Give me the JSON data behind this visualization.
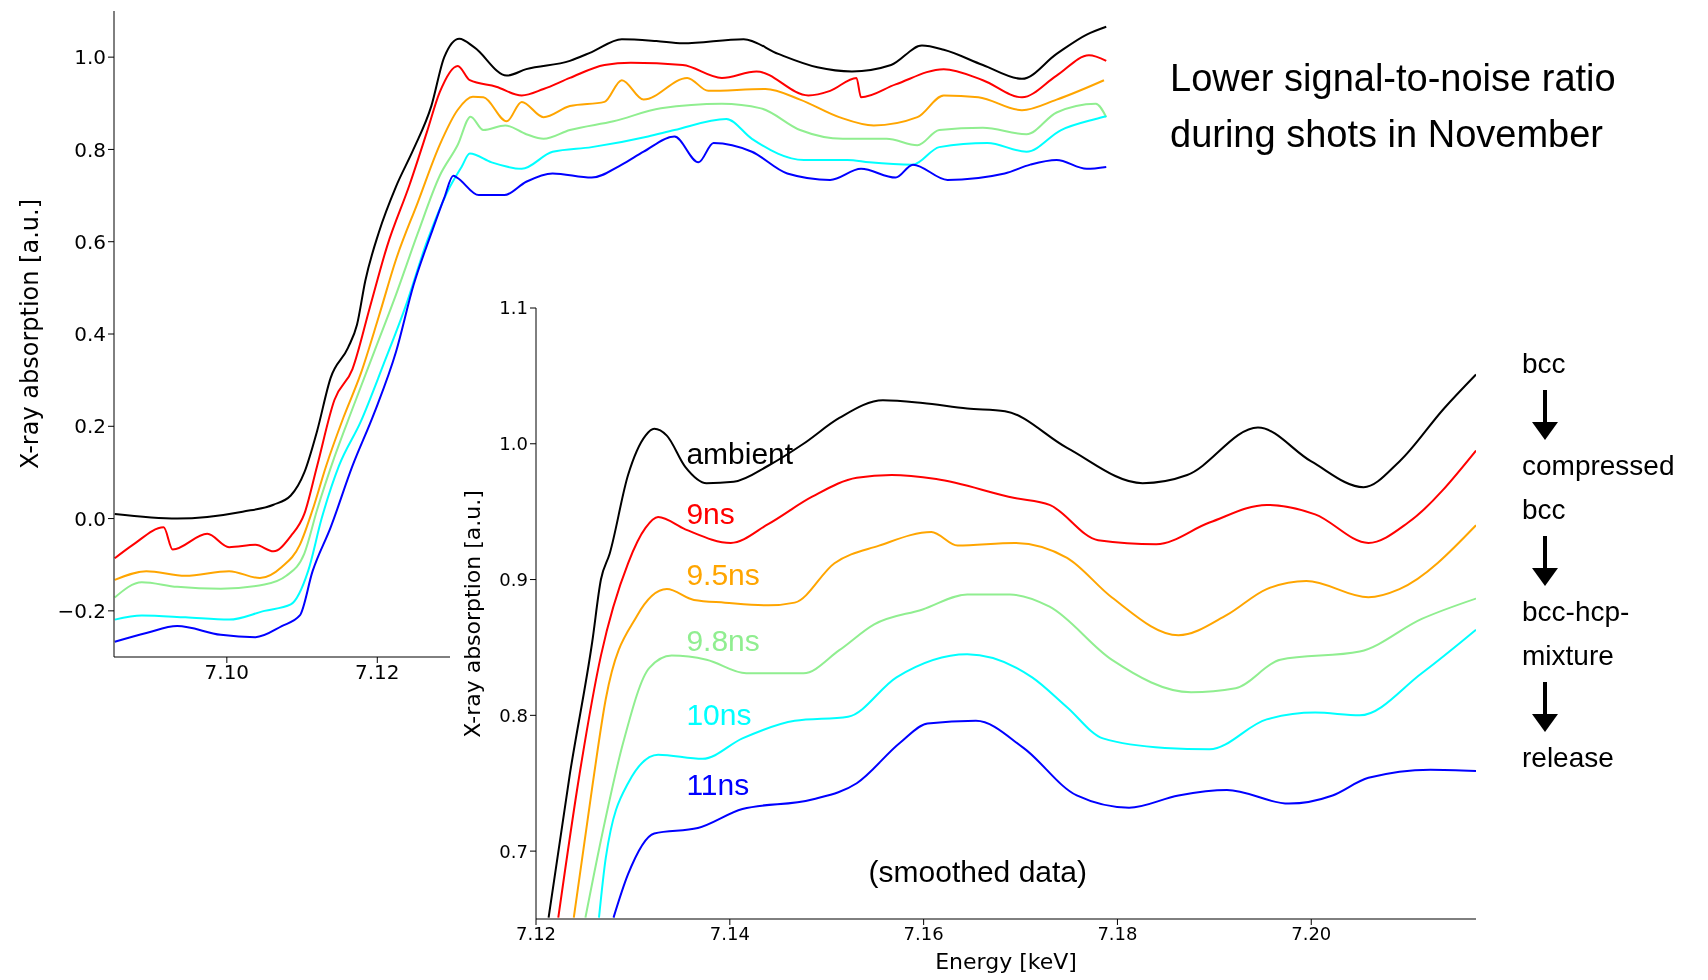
{
  "chart_data": [
    {
      "type": "line",
      "ylabel": "X-ray absorption [a.u.]",
      "xlim": [
        7.085,
        7.217
      ],
      "ylim": [
        -0.3,
        1.1
      ],
      "xticks": [
        {
          "value": 7.1,
          "label": "7.10"
        },
        {
          "value": 7.12,
          "label": "7.12"
        }
      ],
      "yticks": [
        {
          "value": -0.2,
          "label": "−0.2"
        },
        {
          "value": 0,
          "label": "0.0"
        },
        {
          "value": 0.2,
          "label": "0.2"
        },
        {
          "value": 0.4,
          "label": "0.4"
        },
        {
          "value": 0.6,
          "label": "0.6"
        },
        {
          "value": 0.8,
          "label": "0.8"
        },
        {
          "value": 1,
          "label": "1.0"
        }
      ],
      "annotations": [
        "Lower signal-to-noise ratio during shots in November"
      ],
      "series": [
        {
          "color": "#000000",
          "x": [
            7.0851,
            7.0934,
            7.1021,
            7.1062,
            7.1085,
            7.1103,
            7.112,
            7.1138,
            7.1161,
            7.1173,
            7.1184,
            7.1202,
            7.1225,
            7.1248,
            7.1272,
            7.1289,
            7.1309,
            7.1329,
            7.1372,
            7.1398,
            7.1456,
            7.1485,
            7.1525,
            7.1571,
            7.1606,
            7.1687,
            7.1733,
            7.1785,
            7.1831,
            7.1883,
            7.1924,
            7.1953,
            7.2005,
            7.2057,
            7.2103,
            7.2143,
            7.2169
          ],
          "values": [
            0.01,
            0.0,
            0.015,
            0.03,
            0.05,
            0.1,
            0.19,
            0.305,
            0.37,
            0.42,
            0.515,
            0.62,
            0.72,
            0.8,
            0.895,
            1.0,
            1.04,
            1.021,
            0.96,
            0.974,
            0.992,
            1.011,
            1.039,
            1.035,
            1.03,
            1.039,
            1.007,
            0.978,
            0.969,
            0.983,
            1.025,
            1.016,
            0.983,
            0.953,
            1.007,
            1.049,
            1.066
          ]
        },
        {
          "color": "#ff0000",
          "x": [
            7.0851,
            7.0875,
            7.0916,
            7.0928,
            7.0974,
            7.1003,
            7.1038,
            7.1062,
            7.1085,
            7.1103,
            7.112,
            7.1143,
            7.1167,
            7.119,
            7.1213,
            7.1243,
            7.1266,
            7.1283,
            7.1307,
            7.1323,
            7.1358,
            7.1392,
            7.1421,
            7.1456,
            7.1502,
            7.1537,
            7.1606,
            7.1658,
            7.1704,
            7.1773,
            7.1802,
            7.1837,
            7.1843,
            7.1889,
            7.1953,
            7.2005,
            7.2057,
            7.2103,
            7.2146,
            7.2169
          ],
          "values": [
            -0.086,
            -0.057,
            -0.019,
            -0.067,
            -0.033,
            -0.062,
            -0.057,
            -0.071,
            -0.038,
            0.01,
            0.114,
            0.257,
            0.324,
            0.457,
            0.59,
            0.724,
            0.838,
            0.924,
            0.981,
            0.95,
            0.936,
            0.917,
            0.931,
            0.955,
            0.983,
            0.988,
            0.983,
            0.955,
            0.969,
            0.917,
            0.927,
            0.955,
            0.913,
            0.941,
            0.974,
            0.95,
            0.913,
            0.96,
            1.004,
            0.992
          ]
        },
        {
          "color": "#ffa500",
          "x": [
            7.0851,
            7.0893,
            7.0945,
            7.1003,
            7.1044,
            7.1073,
            7.1097,
            7.1114,
            7.1132,
            7.1155,
            7.1178,
            7.1202,
            7.1225,
            7.1254,
            7.1283,
            7.1307,
            7.1327,
            7.1341,
            7.1372,
            7.1392,
            7.1421,
            7.1456,
            7.1502,
            7.1525,
            7.1554,
            7.1612,
            7.164,
            7.1716,
            7.1762,
            7.1814,
            7.186,
            7.1918,
            7.1953,
            7.1999,
            7.2057,
            7.2103,
            7.2166
          ],
          "values": [
            -0.133,
            -0.114,
            -0.124,
            -0.114,
            -0.129,
            -0.105,
            -0.057,
            0.019,
            0.114,
            0.219,
            0.314,
            0.438,
            0.562,
            0.686,
            0.81,
            0.886,
            0.914,
            0.913,
            0.861,
            0.903,
            0.87,
            0.894,
            0.903,
            0.95,
            0.908,
            0.955,
            0.927,
            0.931,
            0.908,
            0.87,
            0.852,
            0.87,
            0.917,
            0.913,
            0.885,
            0.908,
            0.95
          ]
        },
        {
          "color": "#90ee90",
          "x": [
            7.0851,
            7.0887,
            7.0934,
            7.0992,
            7.105,
            7.1079,
            7.1103,
            7.112,
            7.1143,
            7.1167,
            7.1196,
            7.1225,
            7.1254,
            7.1283,
            7.1307,
            7.1324,
            7.1341,
            7.137,
            7.1398,
            7.1421,
            7.1456,
            7.1514,
            7.1577,
            7.1658,
            7.171,
            7.1762,
            7.1819,
            7.1877,
            7.1918,
            7.1947,
            7.2005,
            7.2063,
            7.2103,
            7.2155,
            7.2169
          ],
          "values": [
            -0.171,
            -0.138,
            -0.148,
            -0.152,
            -0.143,
            -0.124,
            -0.076,
            0.019,
            0.133,
            0.238,
            0.362,
            0.486,
            0.619,
            0.743,
            0.81,
            0.871,
            0.842,
            0.852,
            0.833,
            0.823,
            0.842,
            0.861,
            0.889,
            0.899,
            0.889,
            0.842,
            0.823,
            0.823,
            0.809,
            0.842,
            0.847,
            0.833,
            0.88,
            0.899,
            0.87
          ]
        },
        {
          "color": "#00ffff",
          "x": [
            7.0851,
            7.0887,
            7.0945,
            7.1003,
            7.105,
            7.1085,
            7.1108,
            7.1126,
            7.1149,
            7.1178,
            7.1208,
            7.1237,
            7.1266,
            7.1295,
            7.1312,
            7.1323,
            7.1352,
            7.1392,
            7.1433,
            7.1485,
            7.156,
            7.1595,
            7.1664,
            7.1698,
            7.1767,
            7.1825,
            7.1854,
            7.1912,
            7.1947,
            7.2011,
            7.2063,
            7.2109,
            7.2155,
            7.2169
          ],
          "values": [
            -0.219,
            -0.21,
            -0.214,
            -0.219,
            -0.2,
            -0.186,
            -0.114,
            0.0,
            0.114,
            0.21,
            0.333,
            0.457,
            0.6,
            0.714,
            0.762,
            0.791,
            0.772,
            0.758,
            0.795,
            0.805,
            0.828,
            0.842,
            0.866,
            0.823,
            0.777,
            0.777,
            0.772,
            0.767,
            0.805,
            0.814,
            0.795,
            0.842,
            0.866,
            0.872
          ]
        },
        {
          "color": "#0000ff",
          "x": [
            7.0851,
            7.0893,
            7.0934,
            7.0992,
            7.1038,
            7.1073,
            7.1097,
            7.1114,
            7.1138,
            7.1167,
            7.1196,
            7.1225,
            7.1248,
            7.1272,
            7.1289,
            7.1301,
            7.1306,
            7.1335,
            7.1369,
            7.1398,
            7.1433,
            7.1485,
            7.1525,
            7.1554,
            7.1595,
            7.1627,
            7.1647,
            7.1698,
            7.1745,
            7.1802,
            7.1843,
            7.1889,
            7.1912,
            7.1958,
            7.2034,
            7.2068,
            7.2103,
            7.2143,
            7.2169
          ],
          "values": [
            -0.267,
            -0.248,
            -0.233,
            -0.252,
            -0.257,
            -0.233,
            -0.21,
            -0.114,
            -0.019,
            0.114,
            0.229,
            0.362,
            0.505,
            0.619,
            0.695,
            0.743,
            0.739,
            0.701,
            0.701,
            0.73,
            0.748,
            0.739,
            0.767,
            0.795,
            0.828,
            0.772,
            0.814,
            0.795,
            0.748,
            0.734,
            0.758,
            0.739,
            0.767,
            0.734,
            0.748,
            0.767,
            0.777,
            0.758,
            0.762
          ]
        }
      ]
    },
    {
      "type": "line",
      "xlabel": "Energy [keV]",
      "ylabel": "X-ray absorption [a.u.]",
      "xlim": [
        7.12,
        7.217
      ],
      "ylim": [
        0.65,
        1.1
      ],
      "xticks": [
        7.12,
        7.14,
        7.16,
        7.18,
        {
          "value": 7.2,
          "label": "7.20"
        }
      ],
      "yticks": [
        0.7,
        0.8,
        0.9,
        {
          "value": 1,
          "label": "1.0"
        },
        1.1
      ],
      "annotations": [
        "(smoothed data)",
        "bcc",
        "compressed bcc",
        "bcc-hcp-mixture",
        "release"
      ],
      "series": [
        {
          "name": "ambient",
          "color": "#000000",
          "x": [
            7.1213,
            7.1235,
            7.1258,
            7.1267,
            7.1276,
            7.1295,
            7.1313,
            7.1322,
            7.1335,
            7.1354,
            7.1376,
            7.1404,
            7.144,
            7.1476,
            7.1513,
            7.1558,
            7.1599,
            7.1645,
            7.1684,
            7.1748,
            7.1826,
            7.1872,
            7.1945,
            7.2,
            7.2054,
            7.2091,
            7.2137,
            7.217
          ],
          "values": [
            0.651,
            0.757,
            0.854,
            0.9,
            0.919,
            0.977,
            1.006,
            1.011,
            1.006,
            0.983,
            0.971,
            0.972,
            0.984,
            1.0,
            1.019,
            1.032,
            1.03,
            1.026,
            1.024,
            0.997,
            0.971,
            0.977,
            1.012,
            0.987,
            0.968,
            0.987,
            1.026,
            1.051
          ]
        },
        {
          "name": "9ns",
          "color": "#ff0000",
          "x": [
            7.1223,
            7.1245,
            7.1267,
            7.1295,
            7.1313,
            7.1326,
            7.1354,
            7.1401,
            7.144,
            7.1485,
            7.1531,
            7.1567,
            7.1613,
            7.1694,
            7.173,
            7.178,
            7.184,
            7.1895,
            7.1954,
            7.2004,
            7.2059,
            7.21,
            7.217
          ],
          "values": [
            0.651,
            0.757,
            0.844,
            0.912,
            0.938,
            0.946,
            0.937,
            0.927,
            0.941,
            0.961,
            0.975,
            0.977,
            0.974,
            0.96,
            0.955,
            0.929,
            0.926,
            0.942,
            0.955,
            0.948,
            0.927,
            0.942,
            0.995
          ]
        },
        {
          "name": "9.5ns",
          "color": "#ffa500",
          "x": [
            7.1239,
            7.1258,
            7.1272,
            7.1304,
            7.1335,
            7.1363,
            7.1395,
            7.144,
            7.1467,
            7.1508,
            7.1554,
            7.1608,
            7.1635,
            7.1694,
            7.1748,
            7.1794,
            7.1863,
            7.1913,
            7.1954,
            7.1995,
            7.2059,
            7.2091,
            7.217
          ],
          "values": [
            0.651,
            0.747,
            0.812,
            0.873,
            0.893,
            0.885,
            0.883,
            0.881,
            0.883,
            0.912,
            0.925,
            0.935,
            0.925,
            0.927,
            0.916,
            0.887,
            0.859,
            0.874,
            0.893,
            0.899,
            0.887,
            0.893,
            0.94
          ]
        },
        {
          "name": "9.8ns",
          "color": "#90ee90",
          "x": [
            7.1251,
            7.1267,
            7.129,
            7.1317,
            7.134,
            7.1376,
            7.1417,
            7.1476,
            7.1513,
            7.1549,
            7.1599,
            7.1645,
            7.1689,
            7.173,
            7.1794,
            7.1876,
            7.1922,
            7.1968,
            7.205,
            7.2114,
            7.217
          ],
          "values": [
            0.651,
            0.708,
            0.78,
            0.835,
            0.844,
            0.841,
            0.831,
            0.831,
            0.848,
            0.867,
            0.878,
            0.889,
            0.889,
            0.88,
            0.841,
            0.817,
            0.82,
            0.841,
            0.847,
            0.871,
            0.886
          ]
        },
        {
          "name": "10ns",
          "color": "#00ffff",
          "x": [
            7.1265,
            7.1272,
            7.1295,
            7.1326,
            7.1372,
            7.1413,
            7.1467,
            7.1522,
            7.1572,
            7.1645,
            7.1712,
            7.1748,
            7.1785,
            7.1849,
            7.1895,
            7.1954,
            7.2004,
            7.205,
            7.2114,
            7.217
          ],
          "values": [
            0.651,
            0.695,
            0.75,
            0.771,
            0.768,
            0.783,
            0.796,
            0.799,
            0.828,
            0.845,
            0.828,
            0.806,
            0.783,
            0.776,
            0.775,
            0.797,
            0.802,
            0.8,
            0.831,
            0.863
          ]
        },
        {
          "name": "11ns",
          "color": "#0000ff",
          "x": [
            7.128,
            7.1295,
            7.1322,
            7.1367,
            7.1413,
            7.1485,
            7.1531,
            7.1576,
            7.1604,
            7.1654,
            7.1703,
            7.1758,
            7.1812,
            7.1863,
            7.1913,
            7.1977,
            7.2022,
            7.2059,
            7.2123,
            7.217
          ],
          "values": [
            0.651,
            0.683,
            0.713,
            0.717,
            0.731,
            0.738,
            0.75,
            0.78,
            0.794,
            0.796,
            0.776,
            0.741,
            0.732,
            0.741,
            0.745,
            0.735,
            0.741,
            0.754,
            0.76,
            0.759
          ]
        }
      ]
    }
  ]
}
